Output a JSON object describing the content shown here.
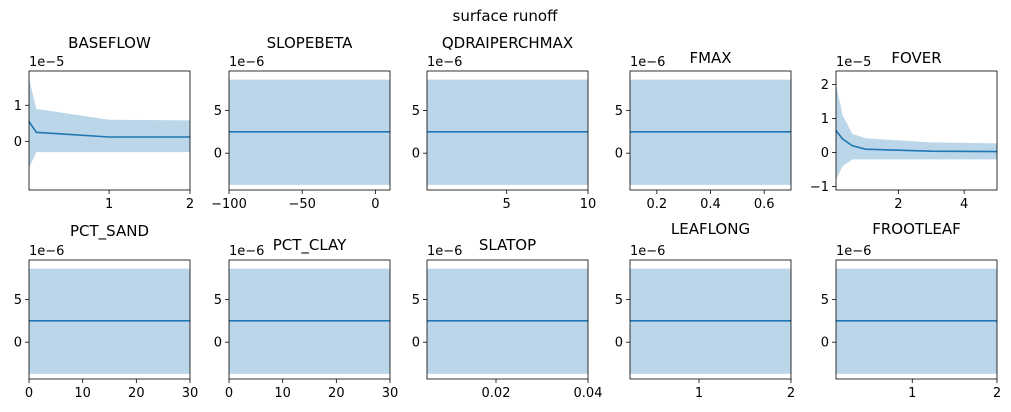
{
  "figure": {
    "suptitle": "surface runoff"
  },
  "chart_data": [
    {
      "type": "area",
      "title": "BASEFLOW",
      "multiplier": "1e−5",
      "xlim": [
        0.01,
        2
      ],
      "ylim": [
        -1.35,
        1.95
      ],
      "xticks": [
        {
          "v": 1,
          "label": "1"
        },
        {
          "v": 2,
          "label": "2"
        }
      ],
      "yticks": [
        {
          "v": 0,
          "label": "0"
        },
        {
          "v": 1,
          "label": "1"
        }
      ],
      "x": [
        0.01,
        0.1,
        1,
        2
      ],
      "mean": [
        0.55,
        0.25,
        0.12,
        0.12
      ],
      "upper": [
        1.75,
        0.9,
        0.6,
        0.58
      ],
      "lower": [
        -0.75,
        -0.3,
        -0.3,
        -0.3
      ]
    },
    {
      "type": "area",
      "title": "SLOPEBETA",
      "multiplier": "1e−6",
      "xlim": [
        -100,
        10
      ],
      "ylim": [
        -4.3,
        9.6
      ],
      "xticks": [
        {
          "v": -100,
          "label": "−100"
        },
        {
          "v": -50,
          "label": "−50"
        },
        {
          "v": 0,
          "label": "0"
        }
      ],
      "yticks": [
        {
          "v": 0,
          "label": "0"
        },
        {
          "v": 5,
          "label": "5"
        }
      ],
      "x": [
        -100,
        10
      ],
      "mean": [
        2.5,
        2.5
      ],
      "upper": [
        8.6,
        8.6
      ],
      "lower": [
        -3.7,
        -3.7
      ]
    },
    {
      "type": "area",
      "title": "QDRAIPERCHMAX",
      "multiplier": "1e−6",
      "xlim": [
        0.1,
        10
      ],
      "ylim": [
        -4.3,
        9.6
      ],
      "xticks": [
        {
          "v": 5,
          "label": "5"
        },
        {
          "v": 10,
          "label": "10"
        }
      ],
      "yticks": [
        {
          "v": 0,
          "label": "0"
        },
        {
          "v": 5,
          "label": "5"
        }
      ],
      "x": [
        0.1,
        10
      ],
      "mean": [
        2.5,
        2.5
      ],
      "upper": [
        8.6,
        8.6
      ],
      "lower": [
        -3.7,
        -3.7
      ]
    },
    {
      "type": "area",
      "title": "FMAX",
      "multiplier": "1e−6",
      "xlim": [
        0.1,
        0.7
      ],
      "ylim": [
        -4.3,
        9.6
      ],
      "xticks": [
        {
          "v": 0.2,
          "label": "0.2"
        },
        {
          "v": 0.4,
          "label": "0.4"
        },
        {
          "v": 0.6,
          "label": "0.6"
        }
      ],
      "yticks": [
        {
          "v": 0,
          "label": "0"
        },
        {
          "v": 5,
          "label": "5"
        }
      ],
      "x": [
        0.1,
        0.7
      ],
      "mean": [
        2.5,
        2.5
      ],
      "upper": [
        8.6,
        8.6
      ],
      "lower": [
        -3.7,
        -3.7
      ]
    },
    {
      "type": "area",
      "title": "FOVER",
      "multiplier": "1e−5",
      "xlim": [
        0.1,
        5
      ],
      "ylim": [
        -1.1,
        2.4
      ],
      "xticks": [
        {
          "v": 2,
          "label": "2"
        },
        {
          "v": 4,
          "label": "4"
        }
      ],
      "yticks": [
        {
          "v": -1,
          "label": "−1"
        },
        {
          "v": 0,
          "label": "0"
        },
        {
          "v": 1,
          "label": "1"
        },
        {
          "v": 2,
          "label": "2"
        }
      ],
      "x": [
        0.1,
        0.3,
        0.6,
        1,
        2,
        3,
        5
      ],
      "mean": [
        0.65,
        0.4,
        0.2,
        0.1,
        0.07,
        0.04,
        0.03
      ],
      "upper": [
        2.0,
        1.1,
        0.55,
        0.42,
        0.36,
        0.3,
        0.27
      ],
      "lower": [
        -0.8,
        -0.4,
        -0.2,
        -0.2,
        -0.2,
        -0.2,
        -0.2
      ]
    },
    {
      "type": "area",
      "title": "PCT_SAND",
      "multiplier": "1e−6",
      "xlim": [
        0,
        30
      ],
      "ylim": [
        -4.3,
        9.6
      ],
      "xticks": [
        {
          "v": 0,
          "label": "0"
        },
        {
          "v": 10,
          "label": "10"
        },
        {
          "v": 20,
          "label": "20"
        },
        {
          "v": 30,
          "label": "30"
        }
      ],
      "yticks": [
        {
          "v": 0,
          "label": "0"
        },
        {
          "v": 5,
          "label": "5"
        }
      ],
      "x": [
        0,
        30
      ],
      "mean": [
        2.5,
        2.5
      ],
      "upper": [
        8.6,
        8.6
      ],
      "lower": [
        -3.7,
        -3.7
      ]
    },
    {
      "type": "area",
      "title": "PCT_CLAY",
      "multiplier": "1e−6",
      "xlim": [
        0,
        30
      ],
      "ylim": [
        -4.3,
        9.6
      ],
      "xticks": [
        {
          "v": 0,
          "label": "0"
        },
        {
          "v": 10,
          "label": "10"
        },
        {
          "v": 20,
          "label": "20"
        },
        {
          "v": 30,
          "label": "30"
        }
      ],
      "yticks": [
        {
          "v": 0,
          "label": "0"
        },
        {
          "v": 5,
          "label": "5"
        }
      ],
      "x": [
        0,
        30
      ],
      "mean": [
        2.5,
        2.5
      ],
      "upper": [
        8.6,
        8.6
      ],
      "lower": [
        -3.7,
        -3.7
      ]
    },
    {
      "type": "area",
      "title": "SLATOP",
      "multiplier": "1e−6",
      "xlim": [
        0.005,
        0.04
      ],
      "ylim": [
        -4.3,
        9.6
      ],
      "xticks": [
        {
          "v": 0.02,
          "label": "0.02"
        },
        {
          "v": 0.04,
          "label": "0.04"
        }
      ],
      "yticks": [
        {
          "v": 0,
          "label": "0"
        },
        {
          "v": 5,
          "label": "5"
        }
      ],
      "x": [
        0.005,
        0.04
      ],
      "mean": [
        2.5,
        2.5
      ],
      "upper": [
        8.6,
        8.6
      ],
      "lower": [
        -3.7,
        -3.7
      ]
    },
    {
      "type": "area",
      "title": "LEAFLONG",
      "multiplier": "1e−6",
      "xlim": [
        0.25,
        2
      ],
      "ylim": [
        -4.3,
        9.6
      ],
      "xticks": [
        {
          "v": 1,
          "label": "1"
        },
        {
          "v": 2,
          "label": "2"
        }
      ],
      "yticks": [
        {
          "v": 0,
          "label": "0"
        },
        {
          "v": 5,
          "label": "5"
        }
      ],
      "x": [
        0.25,
        2
      ],
      "mean": [
        2.5,
        2.5
      ],
      "upper": [
        8.6,
        8.6
      ],
      "lower": [
        -3.7,
        -3.7
      ]
    },
    {
      "type": "area",
      "title": "FROOTLEAF",
      "multiplier": "1e−6",
      "xlim": [
        0.1,
        2
      ],
      "ylim": [
        -4.3,
        9.6
      ],
      "xticks": [
        {
          "v": 1,
          "label": "1"
        },
        {
          "v": 2,
          "label": "2"
        }
      ],
      "yticks": [
        {
          "v": 0,
          "label": "0"
        },
        {
          "v": 5,
          "label": "5"
        }
      ],
      "x": [
        0.1,
        2
      ],
      "mean": [
        2.5,
        2.5
      ],
      "upper": [
        8.6,
        8.6
      ],
      "lower": [
        -3.7,
        -3.7
      ]
    }
  ]
}
